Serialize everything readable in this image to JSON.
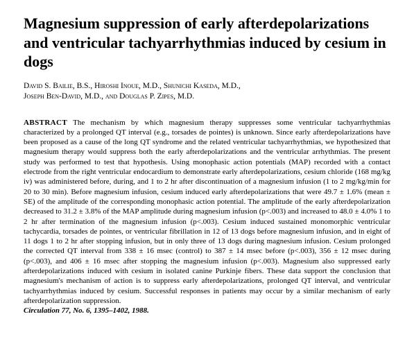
{
  "title": "Magnesium suppression of early afterdepolarizations and ventricular tachyarrhythmias induced by cesium in dogs",
  "authors_line1": "David S. Bailie, B.S., Hiroshi Inoue, M.D., Shunichi Kaseda, M.D.,",
  "authors_line2": "Joseph Ben-David, M.D., and Douglas P. Zipes, M.D.",
  "abstract_label": "ABSTRACT",
  "abstract_text": "The mechanism by which magnesium therapy suppresses some ventricular tachyarrhythmias characterized by a prolonged QT interval (e.g., torsades de pointes) is unknown. Since early afterdepolarizations have been proposed as a cause of the long QT syndrome and the related ventricular tachyarrhythmias, we hypothesized that magnesium therapy would suppress both the early afterdepolarizations and the ventricular arrhythmias. The present study was performed to test that hypothesis. Using monophasic action potentials (MAP) recorded with a contact electrode from the right ventricular endocardium to demonstrate early afterdepolarizations, cesium chloride (168 mg/kg iv) was administered before, during, and 1 to 2 hr after discontinuation of a magnesium infusion (1 to 2 mg/kg/min for 20 to 30 min). Before magnesium infusion, cesium induced early afterdepolarizations that were 49.7 ± 1.6% (mean ± SE) of the amplitude of the corresponding monophasic action potential. The amplitude of the early afterdepolarization decreased to 31.2 ± 3.8% of the MAP amplitude during magnesium infusion (p<.003) and increased to 48.0 ± 4.0% 1 to 2 hr after termination of the magnesium infusion (p<.003). Cesium induced sustained monomorphic ventricular tachycardia, torsades de pointes, or ventricular fibrillation in 12 of 13 dogs before magnesium infusion, and in eight of 11 dogs 1 to 2 hr after stopping infusion, but in only three of 13 dogs during magnesium infusion. Cesium prolonged the corrected QT interval from 338 ± 16 msec (control) to 387 ± 14 msec before (p<.003), 356 ± 12 msec during (p<.003), and 406 ± 16 msec after stopping the magnesium infusion (p<.003). Magnesium also suppressed early afterdepolarizations induced with cesium in isolated canine Purkinje fibers. These data support the conclusion that magnesium's mechanism of action is to suppress early afterdepolarizations, prolonged QT interval, and ventricular tachyarrhythmias induced by cesium. Successful responses in patients may occur by a similar mechanism of early afterdepolarization suppression.",
  "citation": "Circulation 77, No. 6, 1395–1402, 1988."
}
